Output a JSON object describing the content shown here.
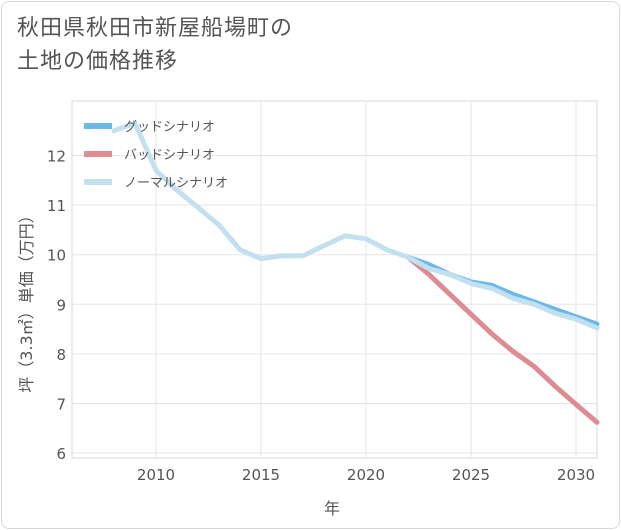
{
  "title": {
    "line1": "秋田県秋田市新屋船場町の",
    "line2": "土地の価格推移"
  },
  "chart_data": {
    "type": "line",
    "title": "秋田県秋田市新屋船場町の土地の価格推移",
    "xlabel": "年",
    "ylabel": "坪（3.3㎡）単価（万円）",
    "xlim": [
      2006,
      2031
    ],
    "ylim": [
      5.9,
      13.1
    ],
    "xticks": [
      2010,
      2015,
      2020,
      2025,
      2030
    ],
    "yticks": [
      6,
      7,
      8,
      9,
      10,
      11,
      12
    ],
    "grid": true,
    "legend_position": "top-left",
    "series": [
      {
        "name": "グッドシナリオ",
        "color": "#6cb9e8",
        "x": [
          2022,
          2023,
          2024,
          2025,
          2026,
          2027,
          2028,
          2029,
          2030,
          2031
        ],
        "y": [
          9.95,
          9.8,
          9.6,
          9.45,
          9.38,
          9.2,
          9.05,
          8.9,
          8.75,
          8.6
        ]
      },
      {
        "name": "バッドシナリオ",
        "color": "#dc8c92",
        "x": [
          2022,
          2023,
          2024,
          2025,
          2026,
          2027,
          2028,
          2029,
          2030,
          2031
        ],
        "y": [
          9.95,
          9.6,
          9.2,
          8.8,
          8.4,
          8.05,
          7.75,
          7.35,
          6.98,
          6.62
        ]
      },
      {
        "name": "ノーマルシナリオ",
        "color": "#c3e0ee",
        "x": [
          2008,
          2009,
          2010,
          2011,
          2012,
          2013,
          2014,
          2015,
          2016,
          2017,
          2018,
          2019,
          2020,
          2021,
          2022,
          2023,
          2024,
          2025,
          2026,
          2027,
          2028,
          2029,
          2030,
          2031
        ],
        "y": [
          12.5,
          12.65,
          11.7,
          11.3,
          10.95,
          10.6,
          10.1,
          9.92,
          9.98,
          9.98,
          10.18,
          10.38,
          10.32,
          10.1,
          9.95,
          9.72,
          9.6,
          9.42,
          9.32,
          9.12,
          9.0,
          8.82,
          8.7,
          8.52
        ]
      }
    ]
  }
}
